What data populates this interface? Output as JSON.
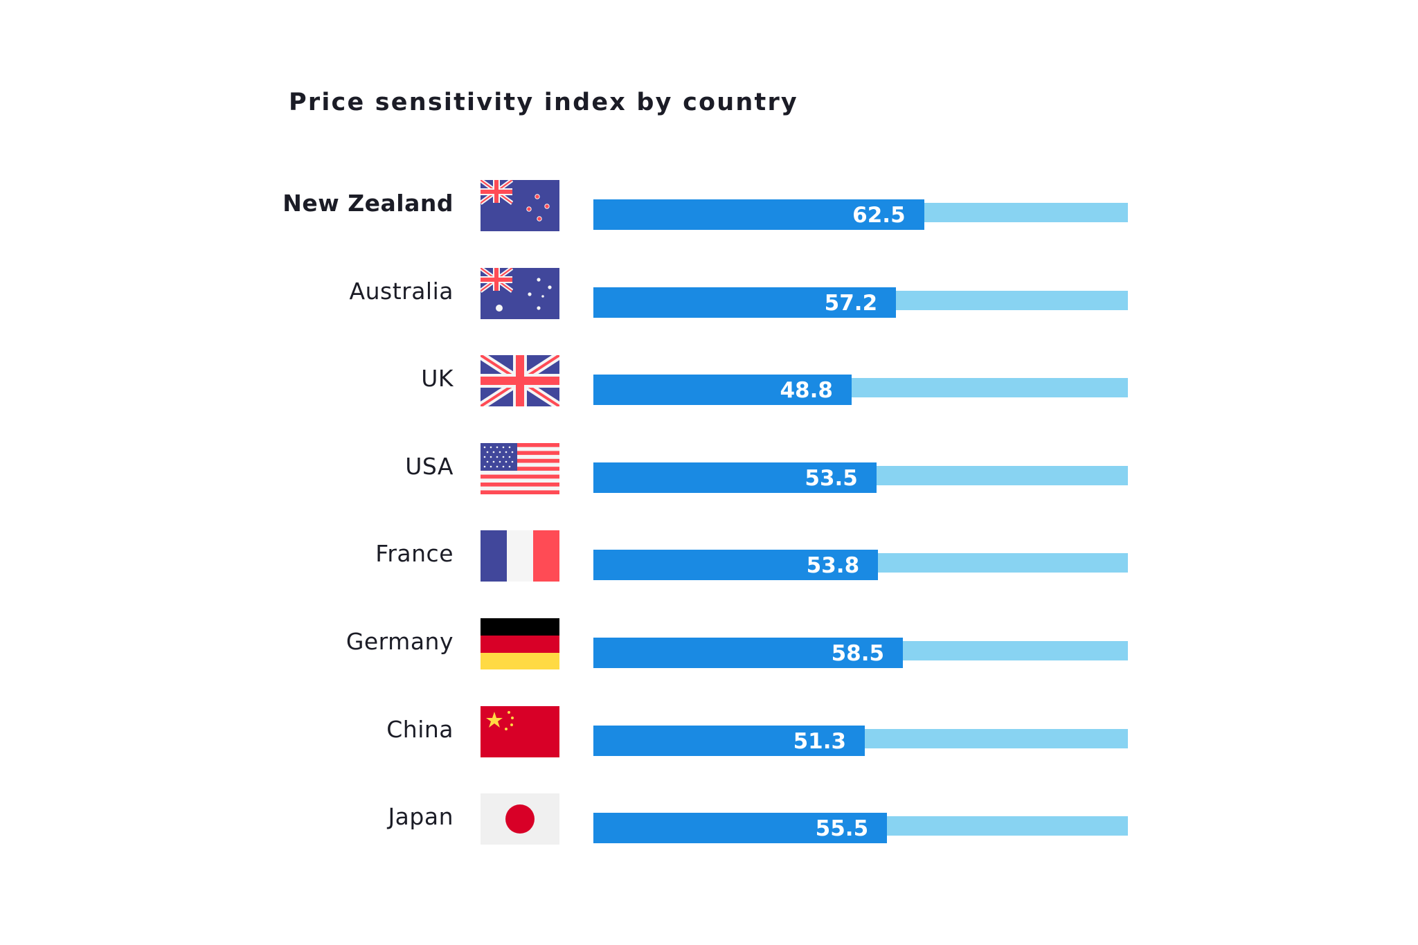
{
  "chart_data": {
    "type": "bar",
    "orientation": "horizontal",
    "title": "Price sensitivity index by country",
    "xlabel": "",
    "ylabel": "",
    "xlim": [
      0,
      100
    ],
    "grid": false,
    "legend": null,
    "categories": [
      "New Zealand",
      "Australia",
      "UK",
      "USA",
      "France",
      "Germany",
      "China",
      "Japan"
    ],
    "values": [
      62.5,
      57.2,
      48.8,
      53.5,
      53.8,
      58.5,
      51.3,
      55.5
    ],
    "data_labels": [
      "62.5",
      "57.2",
      "48.8",
      "53.5",
      "53.8",
      "58.5",
      "51.3",
      "55.5"
    ],
    "highlighted_category": "New Zealand",
    "colors": {
      "bar": "#1a8ae3",
      "track": "#88d3f2",
      "value_text": "#ffffff",
      "label_text": "#1b1c26"
    }
  },
  "rows": [
    {
      "label": "New Zealand",
      "flag": "new-zealand-flag-icon",
      "value": 62.5,
      "value_label": "62.5",
      "highlight": true
    },
    {
      "label": "Australia",
      "flag": "australia-flag-icon",
      "value": 57.2,
      "value_label": "57.2",
      "highlight": false
    },
    {
      "label": "UK",
      "flag": "uk-flag-icon",
      "value": 48.8,
      "value_label": "48.8",
      "highlight": false
    },
    {
      "label": "USA",
      "flag": "usa-flag-icon",
      "value": 53.5,
      "value_label": "53.5",
      "highlight": false
    },
    {
      "label": "France",
      "flag": "france-flag-icon",
      "value": 53.8,
      "value_label": "53.8",
      "highlight": false
    },
    {
      "label": "Germany",
      "flag": "germany-flag-icon",
      "value": 58.5,
      "value_label": "58.5",
      "highlight": false
    },
    {
      "label": "China",
      "flag": "china-flag-icon",
      "value": 51.3,
      "value_label": "51.3",
      "highlight": false
    },
    {
      "label": "Japan",
      "flag": "japan-flag-icon",
      "value": 55.5,
      "value_label": "55.5",
      "highlight": false
    }
  ]
}
